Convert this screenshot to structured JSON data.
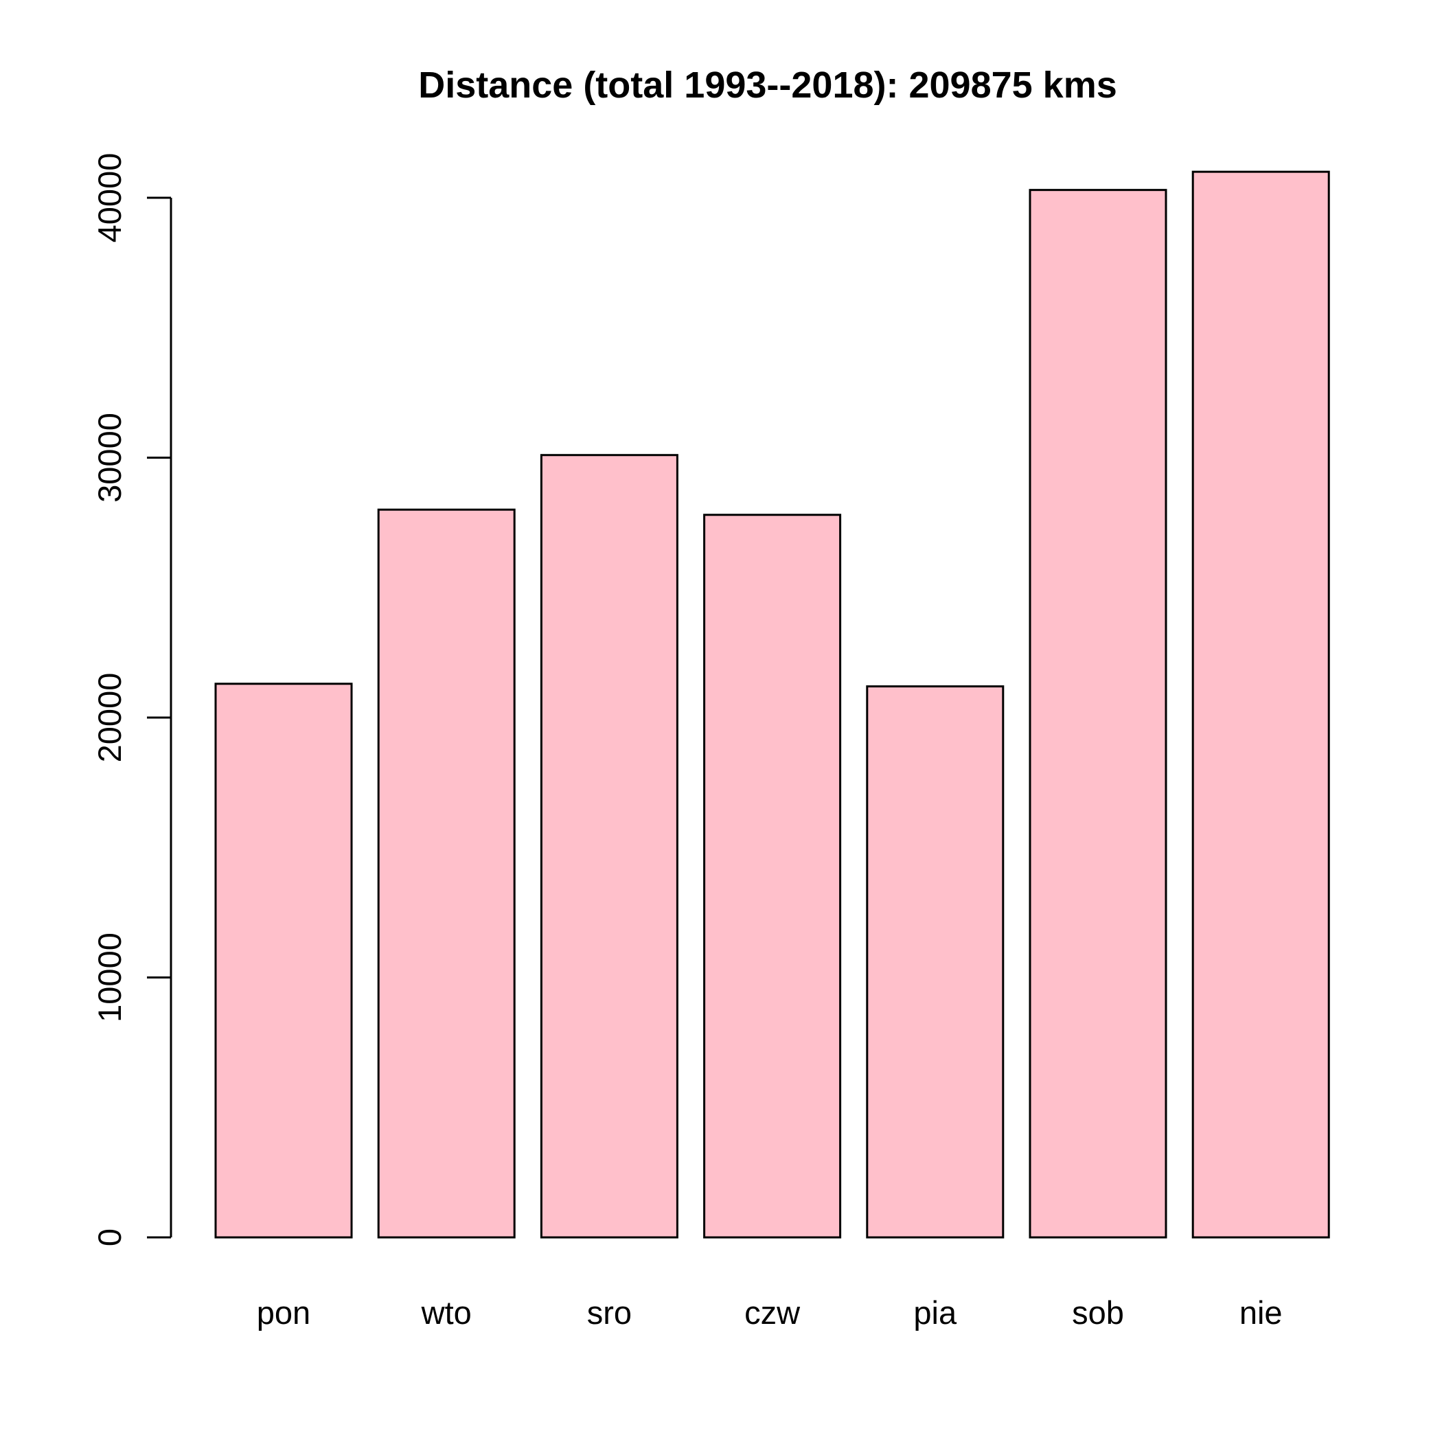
{
  "chart_data": {
    "type": "bar",
    "title": "Distance (total 1993--2018): 209875 kms",
    "xlabel": "",
    "ylabel": "",
    "categories": [
      "pon",
      "wto",
      "sro",
      "czw",
      "pia",
      "sob",
      "nie"
    ],
    "values": [
      21300,
      28000,
      30100,
      27800,
      21200,
      40300,
      41000
    ],
    "ylim": [
      0,
      40000
    ],
    "yticks": [
      0,
      10000,
      20000,
      30000,
      40000
    ],
    "ytick_labels": [
      "0",
      "10000",
      "20000",
      "30000",
      "40000"
    ],
    "bar_fill": "#FFC0CB",
    "bar_stroke": "#000000",
    "grid": false,
    "legend": "none"
  }
}
